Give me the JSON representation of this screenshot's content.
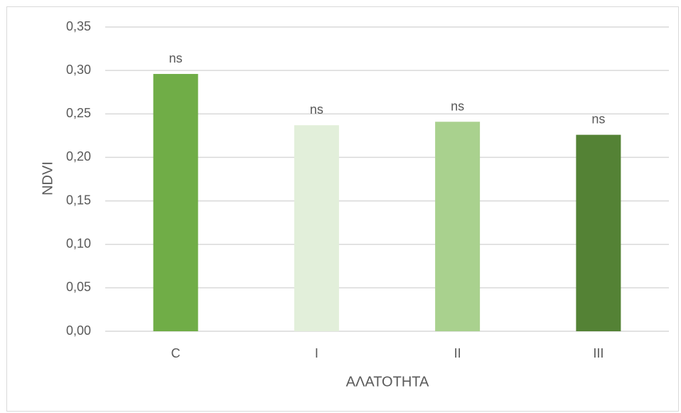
{
  "chart_data": {
    "type": "bar",
    "categories": [
      "C",
      "I",
      "II",
      "III"
    ],
    "values": [
      0.296,
      0.237,
      0.241,
      0.226
    ],
    "data_labels": [
      "ns",
      "ns",
      "ns",
      "ns"
    ],
    "bar_colors": [
      "#70ad47",
      "#e2efda",
      "#a9d18e",
      "#548235"
    ],
    "title": "",
    "xlabel": "ΑΛΑΤΟΤΗΤΑ",
    "ylabel": "NDVI",
    "ylim": [
      0,
      0.35
    ],
    "yticks": [
      "0,00",
      "0,05",
      "0,10",
      "0,15",
      "0,20",
      "0,25",
      "0,30",
      "0,35"
    ],
    "grid": true,
    "legend": "none"
  }
}
